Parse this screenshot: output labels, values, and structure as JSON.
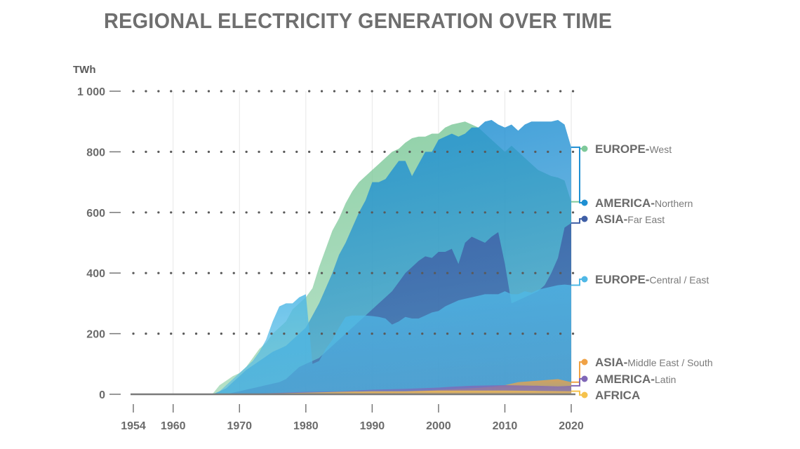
{
  "chart_data": {
    "type": "area",
    "title": "REGIONAL ELECTRICITY GENERATION OVER TIME",
    "ylabel": "TWh",
    "xlabel": "",
    "xlim": [
      1954,
      2020
    ],
    "ylim": [
      0,
      1000
    ],
    "x_ticks": [
      "1954",
      "1960",
      "1970",
      "1980",
      "1990",
      "2000",
      "2010",
      "2020"
    ],
    "y_ticks": [
      "1 000",
      "800",
      "600",
      "400",
      "200",
      "0"
    ],
    "grid": "dotted horizontal + light vertical",
    "legend": "right, labels at series ends",
    "series": [
      {
        "name_main": "EUROPE-",
        "name_sub": "West",
        "color": "#7ec99a",
        "end_value": 635,
        "points": [
          [
            1954,
            0
          ],
          [
            1965,
            0
          ],
          [
            1966,
            3
          ],
          [
            1967,
            30
          ],
          [
            1968,
            45
          ],
          [
            1969,
            60
          ],
          [
            1970,
            70
          ],
          [
            1971,
            90
          ],
          [
            1972,
            120
          ],
          [
            1973,
            150
          ],
          [
            1974,
            170
          ],
          [
            1975,
            200
          ],
          [
            1976,
            220
          ],
          [
            1977,
            240
          ],
          [
            1978,
            280
          ],
          [
            1979,
            300
          ],
          [
            1980,
            320
          ],
          [
            1981,
            350
          ],
          [
            1982,
            420
          ],
          [
            1983,
            480
          ],
          [
            1984,
            540
          ],
          [
            1985,
            580
          ],
          [
            1986,
            630
          ],
          [
            1987,
            670
          ],
          [
            1988,
            700
          ],
          [
            1989,
            720
          ],
          [
            1990,
            740
          ],
          [
            1991,
            760
          ],
          [
            1992,
            780
          ],
          [
            1993,
            800
          ],
          [
            1994,
            810
          ],
          [
            1995,
            830
          ],
          [
            1996,
            845
          ],
          [
            1997,
            850
          ],
          [
            1998,
            850
          ],
          [
            1999,
            860
          ],
          [
            2000,
            860
          ],
          [
            2001,
            880
          ],
          [
            2002,
            890
          ],
          [
            2003,
            895
          ],
          [
            2004,
            900
          ],
          [
            2005,
            890
          ],
          [
            2006,
            880
          ],
          [
            2007,
            860
          ],
          [
            2008,
            840
          ],
          [
            2009,
            820
          ],
          [
            2010,
            800
          ],
          [
            2011,
            820
          ],
          [
            2012,
            800
          ],
          [
            2013,
            780
          ],
          [
            2014,
            760
          ],
          [
            2015,
            740
          ],
          [
            2016,
            730
          ],
          [
            2017,
            720
          ],
          [
            2018,
            715
          ],
          [
            2019,
            705
          ],
          [
            2020,
            635
          ]
        ]
      },
      {
        "name_main": "AMERICA-",
        "name_sub": "Northern",
        "color": "#1f8fd2",
        "end_value": 815,
        "points": [
          [
            1954,
            0
          ],
          [
            1966,
            0
          ],
          [
            1967,
            10
          ],
          [
            1968,
            20
          ],
          [
            1969,
            40
          ],
          [
            1970,
            60
          ],
          [
            1971,
            80
          ],
          [
            1972,
            95
          ],
          [
            1973,
            110
          ],
          [
            1974,
            125
          ],
          [
            1975,
            140
          ],
          [
            1976,
            150
          ],
          [
            1977,
            160
          ],
          [
            1978,
            180
          ],
          [
            1979,
            200
          ],
          [
            1980,
            220
          ],
          [
            1981,
            260
          ],
          [
            1982,
            300
          ],
          [
            1983,
            350
          ],
          [
            1984,
            400
          ],
          [
            1985,
            460
          ],
          [
            1986,
            500
          ],
          [
            1987,
            550
          ],
          [
            1988,
            600
          ],
          [
            1989,
            640
          ],
          [
            1990,
            700
          ],
          [
            1991,
            700
          ],
          [
            1992,
            710
          ],
          [
            1993,
            740
          ],
          [
            1994,
            770
          ],
          [
            1995,
            770
          ],
          [
            1996,
            720
          ],
          [
            1997,
            760
          ],
          [
            1998,
            800
          ],
          [
            1999,
            800
          ],
          [
            2000,
            840
          ],
          [
            2001,
            850
          ],
          [
            2002,
            860
          ],
          [
            2003,
            850
          ],
          [
            2004,
            860
          ],
          [
            2005,
            880
          ],
          [
            2006,
            880
          ],
          [
            2007,
            900
          ],
          [
            2008,
            905
          ],
          [
            2009,
            890
          ],
          [
            2010,
            880
          ],
          [
            2011,
            890
          ],
          [
            2012,
            870
          ],
          [
            2013,
            890
          ],
          [
            2014,
            900
          ],
          [
            2015,
            900
          ],
          [
            2016,
            900
          ],
          [
            2017,
            900
          ],
          [
            2018,
            905
          ],
          [
            2019,
            890
          ],
          [
            2020,
            815
          ]
        ]
      },
      {
        "name_main": "ASIA-",
        "name_sub": "Far East",
        "color": "#3f5fa6",
        "end_value": 565,
        "points": [
          [
            1954,
            0
          ],
          [
            1968,
            0
          ],
          [
            1969,
            5
          ],
          [
            1970,
            10
          ],
          [
            1971,
            15
          ],
          [
            1972,
            20
          ],
          [
            1973,
            25
          ],
          [
            1974,
            30
          ],
          [
            1975,
            35
          ],
          [
            1976,
            40
          ],
          [
            1977,
            50
          ],
          [
            1978,
            70
          ],
          [
            1979,
            90
          ],
          [
            1980,
            100
          ],
          [
            1981,
            110
          ],
          [
            1982,
            120
          ],
          [
            1983,
            140
          ],
          [
            1984,
            160
          ],
          [
            1985,
            180
          ],
          [
            1986,
            200
          ],
          [
            1987,
            220
          ],
          [
            1988,
            240
          ],
          [
            1989,
            260
          ],
          [
            1990,
            280
          ],
          [
            1991,
            300
          ],
          [
            1992,
            320
          ],
          [
            1993,
            340
          ],
          [
            1994,
            370
          ],
          [
            1995,
            400
          ],
          [
            1996,
            420
          ],
          [
            1997,
            440
          ],
          [
            1998,
            455
          ],
          [
            1999,
            450
          ],
          [
            2000,
            470
          ],
          [
            2001,
            470
          ],
          [
            2002,
            480
          ],
          [
            2003,
            430
          ],
          [
            2004,
            500
          ],
          [
            2005,
            520
          ],
          [
            2006,
            510
          ],
          [
            2007,
            500
          ],
          [
            2008,
            520
          ],
          [
            2009,
            535
          ],
          [
            2010,
            430
          ],
          [
            2011,
            300
          ],
          [
            2012,
            310
          ],
          [
            2013,
            320
          ],
          [
            2014,
            330
          ],
          [
            2015,
            340
          ],
          [
            2016,
            360
          ],
          [
            2017,
            400
          ],
          [
            2018,
            450
          ],
          [
            2019,
            550
          ],
          [
            2020,
            565
          ]
        ]
      },
      {
        "name_main": "EUROPE-",
        "name_sub": "Central / East",
        "color": "#4fb8e6",
        "end_value": 360,
        "points": [
          [
            1954,
            0
          ],
          [
            1966,
            0
          ],
          [
            1967,
            10
          ],
          [
            1968,
            30
          ],
          [
            1969,
            50
          ],
          [
            1970,
            70
          ],
          [
            1971,
            90
          ],
          [
            1972,
            110
          ],
          [
            1973,
            140
          ],
          [
            1974,
            180
          ],
          [
            1975,
            240
          ],
          [
            1976,
            290
          ],
          [
            1977,
            300
          ],
          [
            1978,
            300
          ],
          [
            1979,
            320
          ],
          [
            1980,
            330
          ],
          [
            1981,
            100
          ],
          [
            1982,
            110
          ],
          [
            1983,
            150
          ],
          [
            1984,
            180
          ],
          [
            1985,
            220
          ],
          [
            1986,
            255
          ],
          [
            1987,
            260
          ],
          [
            1988,
            260
          ],
          [
            1989,
            260
          ],
          [
            1990,
            258
          ],
          [
            1991,
            255
          ],
          [
            1992,
            250
          ],
          [
            1993,
            230
          ],
          [
            1994,
            240
          ],
          [
            1995,
            255
          ],
          [
            1996,
            250
          ],
          [
            1997,
            250
          ],
          [
            1998,
            260
          ],
          [
            1999,
            270
          ],
          [
            2000,
            275
          ],
          [
            2001,
            290
          ],
          [
            2002,
            300
          ],
          [
            2003,
            310
          ],
          [
            2004,
            315
          ],
          [
            2005,
            320
          ],
          [
            2006,
            325
          ],
          [
            2007,
            330
          ],
          [
            2008,
            330
          ],
          [
            2009,
            330
          ],
          [
            2010,
            340
          ],
          [
            2011,
            330
          ],
          [
            2012,
            330
          ],
          [
            2013,
            340
          ],
          [
            2014,
            335
          ],
          [
            2015,
            345
          ],
          [
            2016,
            350
          ],
          [
            2017,
            355
          ],
          [
            2018,
            360
          ],
          [
            2019,
            362
          ],
          [
            2020,
            360
          ]
        ]
      },
      {
        "name_main": "ASIA-",
        "name_sub": "Middle East / South",
        "color": "#f0a245",
        "end_value": 40,
        "points": [
          [
            1954,
            0
          ],
          [
            1970,
            0
          ],
          [
            1975,
            2
          ],
          [
            1980,
            3
          ],
          [
            1985,
            5
          ],
          [
            1990,
            8
          ],
          [
            1995,
            10
          ],
          [
            2000,
            15
          ],
          [
            2005,
            20
          ],
          [
            2008,
            25
          ],
          [
            2010,
            30
          ],
          [
            2012,
            40
          ],
          [
            2015,
            45
          ],
          [
            2018,
            50
          ],
          [
            2020,
            40
          ]
        ]
      },
      {
        "name_main": "AMERICA-",
        "name_sub": "Latin",
        "color": "#8067b7",
        "end_value": 28,
        "points": [
          [
            1954,
            0
          ],
          [
            1970,
            0
          ],
          [
            1975,
            4
          ],
          [
            1980,
            8
          ],
          [
            1985,
            10
          ],
          [
            1990,
            15
          ],
          [
            1995,
            18
          ],
          [
            2000,
            22
          ],
          [
            2002,
            25
          ],
          [
            2005,
            28
          ],
          [
            2010,
            30
          ],
          [
            2015,
            28
          ],
          [
            2018,
            26
          ],
          [
            2020,
            28
          ]
        ]
      },
      {
        "name_main": "AFRICA",
        "name_sub": "",
        "color": "#f5c24c",
        "end_value": 10,
        "points": [
          [
            1954,
            0
          ],
          [
            1970,
            0
          ],
          [
            1975,
            3
          ],
          [
            1980,
            5
          ],
          [
            1985,
            8
          ],
          [
            1990,
            10
          ],
          [
            1995,
            10
          ],
          [
            2000,
            12
          ],
          [
            2005,
            12
          ],
          [
            2010,
            12
          ],
          [
            2015,
            11
          ],
          [
            2020,
            10
          ]
        ]
      }
    ]
  }
}
